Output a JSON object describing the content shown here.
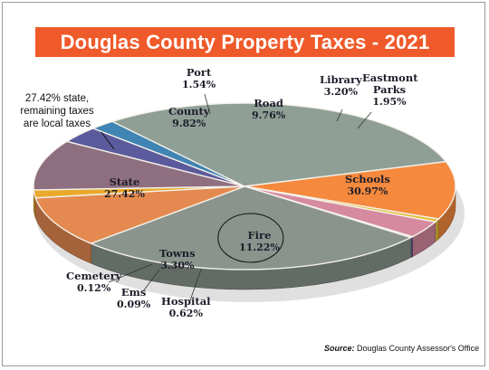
{
  "title": "Douglas County Property Taxes - 2021",
  "callout": {
    "line1": "27.42% state,",
    "line2": "remaining taxes",
    "line3": "are local taxes"
  },
  "source": {
    "label": "Source:",
    "text": "Douglas County Assessor's Office"
  },
  "chart_data": {
    "type": "pie",
    "title": "Douglas County Property Taxes - 2021",
    "slices": [
      {
        "name": "Port",
        "value": 1.54,
        "label": "1.54%",
        "color": "#e9a92a"
      },
      {
        "name": "Road",
        "value": 9.76,
        "label": "9.76%",
        "color": "#8e6f80"
      },
      {
        "name": "Library",
        "value": 3.2,
        "label": "3.20%",
        "color": "#5a5a9c"
      },
      {
        "name": "Eastmont Parks",
        "value": 1.95,
        "label": "1.95%",
        "color": "#3f84b3"
      },
      {
        "name": "Schools",
        "value": 30.97,
        "label": "30.97%",
        "color": "#8f9f96"
      },
      {
        "name": "Fire",
        "value": 11.22,
        "label": "11.22%",
        "color": "#f5893d"
      },
      {
        "name": "Hospital",
        "value": 0.62,
        "label": "0.62%",
        "color": "#e6be3a"
      },
      {
        "name": "Towns",
        "value": 3.3,
        "label": "3.30%",
        "color": "#d58aa0"
      },
      {
        "name": "Ems",
        "value": 0.09,
        "label": "0.09%",
        "color": "#8a5a8a"
      },
      {
        "name": "Cemetery",
        "value": 0.12,
        "label": "0.12%",
        "color": "#6a6ab0"
      },
      {
        "name": "State",
        "value": 27.42,
        "label": "27.42%",
        "color": "#8a948c"
      },
      {
        "name": "County",
        "value": 9.82,
        "label": "9.82%",
        "color": "#e48a50"
      }
    ]
  }
}
